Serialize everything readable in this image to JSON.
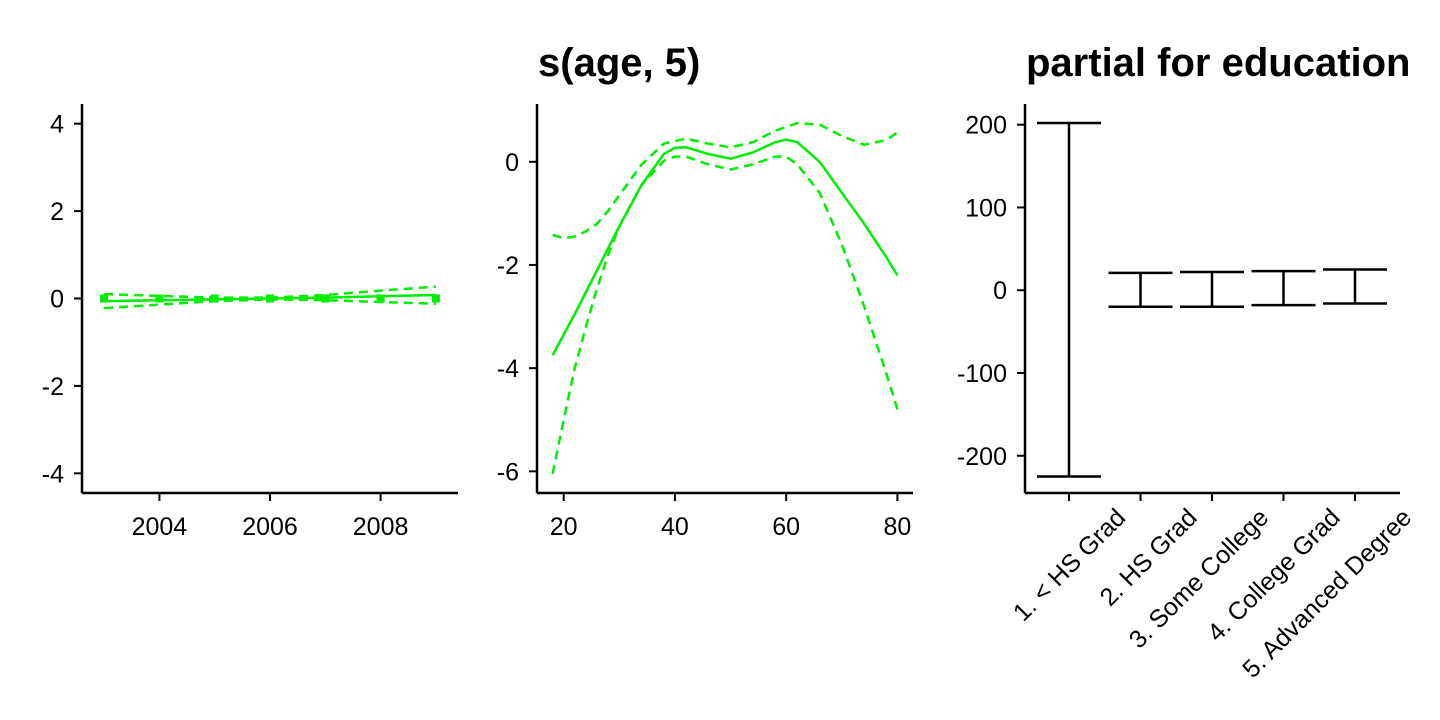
{
  "colors": {
    "curve": "#00ee00",
    "axis": "#000000",
    "bar": "#000000"
  },
  "chart_data": [
    {
      "type": "line",
      "title": "",
      "xlabel": "",
      "ylabel": "",
      "xlim": [
        2002.6,
        2009.4
      ],
      "ylim": [
        -4.45,
        4.45
      ],
      "x_ticks": [
        2004,
        2006,
        2008
      ],
      "x_tick_labels": [
        "2004",
        "2006",
        "2008"
      ],
      "y_ticks": [
        4,
        2,
        0,
        -2,
        -4
      ],
      "y_tick_labels": [
        "4",
        "2",
        "0",
        "-2",
        "-4"
      ],
      "grid": false,
      "series": [
        {
          "style": "solid",
          "x": [
            2003,
            2004,
            2005,
            2006,
            2007,
            2008,
            2009
          ],
          "y": [
            -0.06,
            -0.04,
            -0.02,
            0.0,
            0.02,
            0.05,
            0.08
          ]
        },
        {
          "style": "dashed",
          "x": [
            2003,
            2004,
            2005,
            2006,
            2007,
            2008,
            2009
          ],
          "y": [
            0.1,
            0.06,
            0.02,
            0.02,
            0.08,
            0.18,
            0.27
          ]
        },
        {
          "style": "dashed",
          "x": [
            2003,
            2004,
            2005,
            2006,
            2007,
            2008,
            2009
          ],
          "y": [
            -0.22,
            -0.14,
            -0.06,
            -0.02,
            -0.04,
            -0.08,
            -0.12
          ]
        }
      ],
      "rug_x": [
        2003,
        2004,
        2005,
        2006,
        2007,
        2008,
        2009
      ]
    },
    {
      "type": "line",
      "title": "s(age, 5)",
      "xlabel": "",
      "ylabel": "",
      "xlim": [
        15.2,
        82.8
      ],
      "ylim": [
        -6.42,
        1.12
      ],
      "x_ticks": [
        20,
        40,
        60,
        80
      ],
      "x_tick_labels": [
        "20",
        "40",
        "60",
        "80"
      ],
      "y_ticks": [
        0,
        -2,
        -4,
        -6
      ],
      "y_tick_labels": [
        "0",
        "-2",
        "-4",
        "-6"
      ],
      "grid": false,
      "series": [
        {
          "style": "solid",
          "x": [
            18,
            22,
            26,
            30,
            34,
            38,
            40,
            42,
            46,
            50,
            54,
            58,
            60,
            62,
            66,
            70,
            74,
            78,
            80
          ],
          "y": [
            -3.75,
            -2.95,
            -2.1,
            -1.25,
            -0.45,
            0.15,
            0.27,
            0.28,
            0.15,
            0.06,
            0.18,
            0.38,
            0.43,
            0.38,
            0.0,
            -0.6,
            -1.2,
            -1.85,
            -2.2
          ]
        },
        {
          "style": "dashed",
          "x": [
            18,
            20,
            22,
            24,
            26,
            28,
            30,
            34,
            38,
            42,
            46,
            50,
            54,
            58,
            62,
            66,
            70,
            74,
            78,
            80
          ],
          "y": [
            -1.42,
            -1.48,
            -1.45,
            -1.35,
            -1.2,
            -0.95,
            -0.65,
            -0.05,
            0.35,
            0.45,
            0.35,
            0.28,
            0.38,
            0.6,
            0.75,
            0.72,
            0.5,
            0.33,
            0.42,
            0.57
          ]
        },
        {
          "style": "dashed",
          "x": [
            18,
            20,
            22,
            24,
            26,
            28,
            30,
            34,
            38,
            40,
            42,
            46,
            50,
            54,
            58,
            60,
            62,
            66,
            70,
            74,
            78,
            80
          ],
          "y": [
            -6.05,
            -5.0,
            -4.0,
            -3.2,
            -2.45,
            -1.8,
            -1.25,
            -0.45,
            0.02,
            0.1,
            0.1,
            -0.05,
            -0.15,
            -0.05,
            0.1,
            0.1,
            -0.05,
            -0.6,
            -1.6,
            -2.8,
            -4.1,
            -4.8
          ]
        }
      ]
    },
    {
      "type": "errorbar",
      "title": "partial for education",
      "xlabel": "",
      "ylabel": "",
      "ylim": [
        -245,
        225
      ],
      "y_ticks": [
        200,
        100,
        0,
        -100,
        -200
      ],
      "y_tick_labels": [
        "200",
        "100",
        "0",
        "-100",
        "-200"
      ],
      "categories": [
        "1. < HS Grad",
        "2. HS Grad",
        "3. Some College",
        "4. College Grad",
        "5. Advanced Degree"
      ],
      "upper": [
        202,
        21,
        22,
        23,
        25
      ],
      "lower": [
        -225,
        -20,
        -20,
        -18,
        -16
      ],
      "grid": false
    }
  ]
}
